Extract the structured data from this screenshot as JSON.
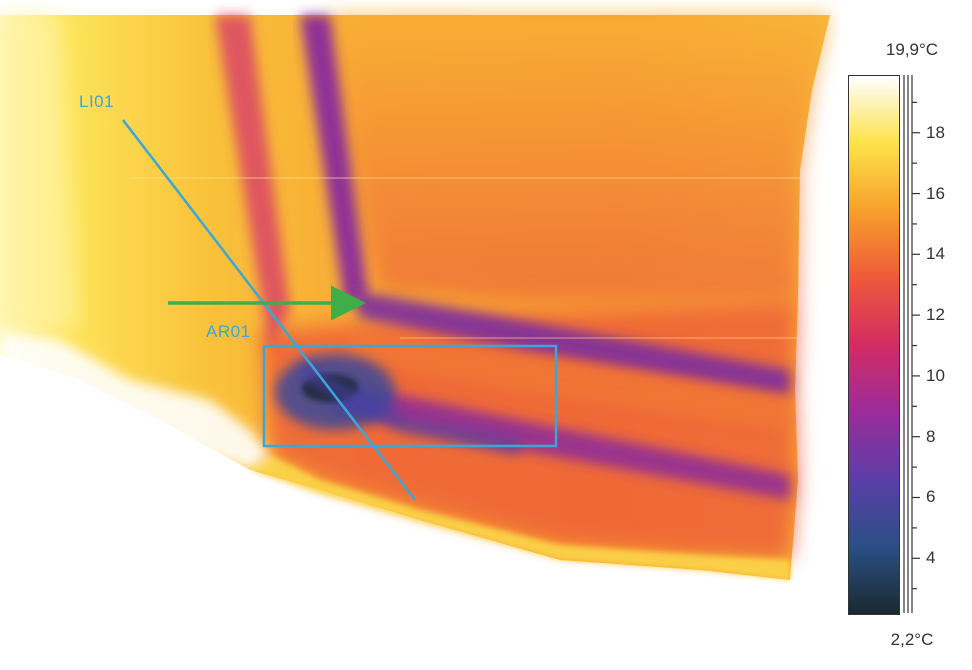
{
  "overlay": {
    "line_label": "LI01",
    "area_label": "AR01",
    "line_color": "#39a8d8",
    "arrow_color": "#3fae49"
  },
  "scale": {
    "max_label": "19,9°C",
    "min_label": "2,2°C",
    "min_value": 2.2,
    "max_value": 19.9,
    "ticks": [
      {
        "value": 18,
        "label": "18"
      },
      {
        "value": 16,
        "label": "16"
      },
      {
        "value": 14,
        "label": "14"
      },
      {
        "value": 12,
        "label": "12"
      },
      {
        "value": 10,
        "label": "10"
      },
      {
        "value": 8,
        "label": "8"
      },
      {
        "value": 6,
        "label": "6"
      },
      {
        "value": 4,
        "label": "4"
      }
    ],
    "palette": [
      "#ffffff",
      "#fde24a",
      "#f7a02c",
      "#ee5a3a",
      "#d32c63",
      "#9b2c9b",
      "#5b3ea6",
      "#2a4f86",
      "#1b2a30"
    ]
  }
}
